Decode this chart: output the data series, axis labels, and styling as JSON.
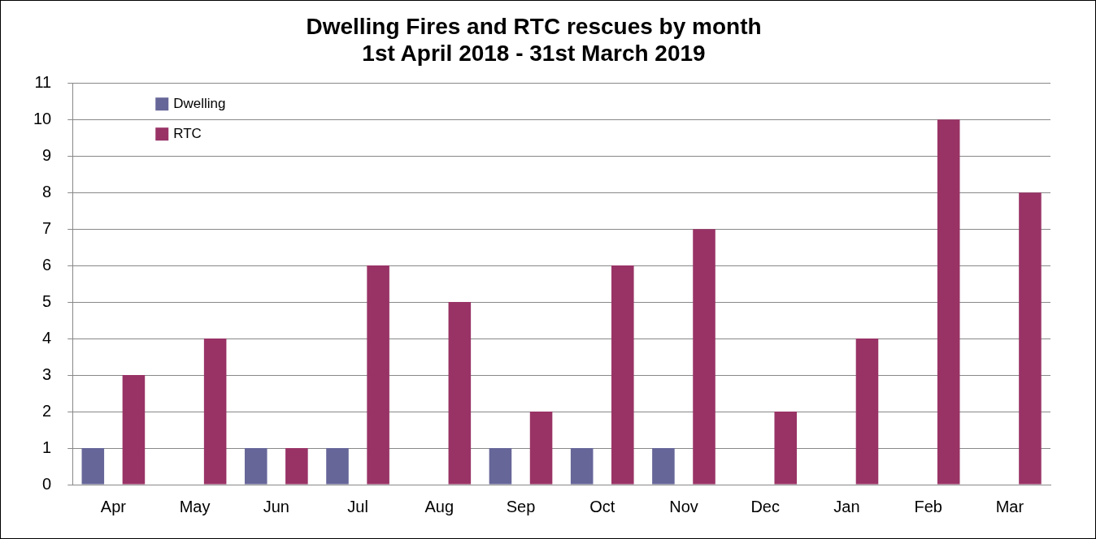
{
  "chart_data": {
    "type": "bar",
    "title": "Dwelling Fires and RTC rescues by month",
    "subtitle": "1st April 2018 - 31st March 2019",
    "categories": [
      "Apr",
      "May",
      "Jun",
      "Jul",
      "Aug",
      "Sep",
      "Oct",
      "Nov",
      "Dec",
      "Jan",
      "Feb",
      "Mar"
    ],
    "series": [
      {
        "name": "Dwelling",
        "color": "#666699",
        "values": [
          1,
          0,
          1,
          1,
          0,
          1,
          1,
          1,
          0,
          0,
          0,
          0
        ]
      },
      {
        "name": "RTC",
        "color": "#993366",
        "values": [
          3,
          4,
          1,
          6,
          5,
          2,
          6,
          7,
          2,
          4,
          10,
          8
        ]
      }
    ],
    "ylim": [
      0,
      11
    ],
    "yticks": [
      0,
      1,
      2,
      3,
      4,
      5,
      6,
      7,
      8,
      9,
      10,
      11
    ],
    "grid": "y",
    "legend": "top left"
  }
}
